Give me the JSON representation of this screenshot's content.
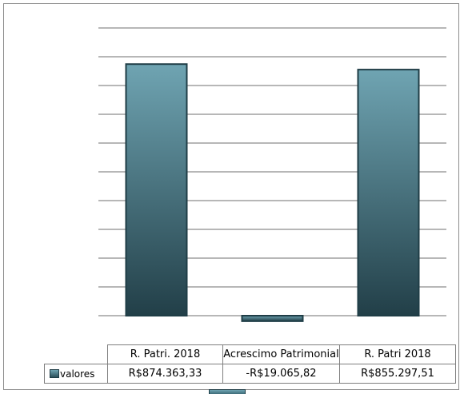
{
  "chart_data": {
    "type": "bar",
    "categories": [
      "R. Patri. 2018",
      "Acrescimo Patrimonial",
      "R. Patri 2018"
    ],
    "series": [
      {
        "name": "valores",
        "values": [
          874363.33,
          -19065.82,
          855297.51
        ],
        "value_labels": [
          "R$874.363,33",
          "-R$19.065,82",
          "R$855.297,51"
        ]
      }
    ],
    "ylim": [
      -25000,
      1000000
    ],
    "y_gridline_step": 100000,
    "grid": true,
    "axis_tick_labels_visible": false,
    "legend": "data-table",
    "colors": {
      "bar_top": "#6fa4b2",
      "bar_bottom": "#223f48",
      "bar_edge": "#1f3d46",
      "grid": "#8c8c8c"
    }
  }
}
